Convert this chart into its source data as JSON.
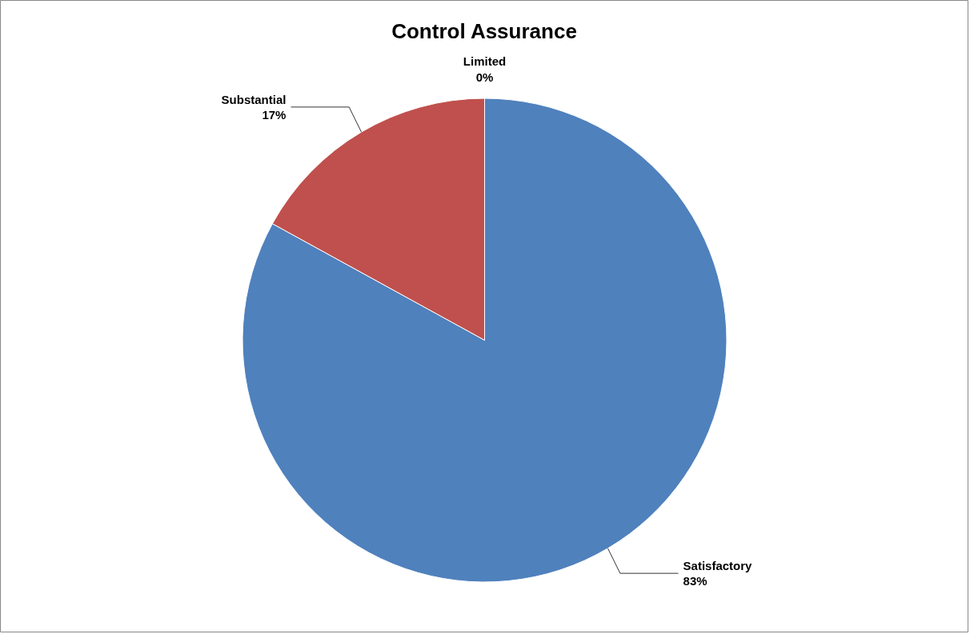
{
  "chart_data": {
    "type": "pie",
    "title": "Control Assurance",
    "categories": [
      "Satisfactory",
      "Substantial",
      "Limited"
    ],
    "values": [
      83,
      17,
      0
    ],
    "colors": [
      "#4f81bd",
      "#c0504d",
      "#9bbb59"
    ],
    "value_labels": [
      "83%",
      "17%",
      "0%"
    ]
  }
}
